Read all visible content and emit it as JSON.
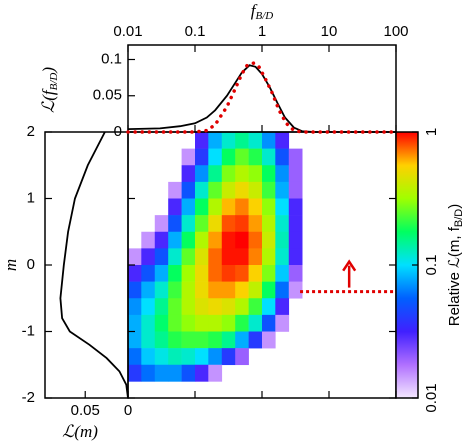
{
  "chart_data": [
    {
      "type": "heatmap",
      "ylabel": "m",
      "xscale": "log",
      "xlim": [
        0.01,
        100
      ],
      "ylim": [
        -2,
        2
      ],
      "yticks": [
        -2,
        -1,
        0,
        1,
        2
      ],
      "x_edges": [
        0.01,
        0.0158,
        0.0251,
        0.0398,
        0.0631,
        0.1,
        0.158,
        0.251,
        0.398,
        0.631,
        1,
        1.58,
        2.51,
        3.98
      ],
      "y_edges": [
        2,
        1.75,
        1.5,
        1.25,
        1,
        0.75,
        0.5,
        0.25,
        0,
        -0.25,
        -0.5,
        -0.75,
        -1,
        -1.25,
        -1.5,
        -1.75
      ],
      "z": [
        [
          null,
          null,
          null,
          null,
          null,
          0.03,
          0.08,
          0.12,
          0.15,
          0.12,
          0.07,
          0.03,
          null
        ],
        [
          null,
          null,
          null,
          null,
          0.015,
          0.04,
          0.1,
          0.18,
          0.25,
          0.2,
          0.12,
          0.05,
          0.02
        ],
        [
          null,
          null,
          null,
          null,
          0.03,
          0.07,
          0.15,
          0.28,
          0.35,
          0.3,
          0.18,
          0.07,
          0.02
        ],
        [
          null,
          null,
          null,
          0.015,
          0.05,
          0.12,
          0.25,
          0.4,
          0.5,
          0.4,
          0.22,
          0.08,
          0.02
        ],
        [
          null,
          null,
          null,
          0.03,
          0.08,
          0.18,
          0.35,
          0.6,
          0.7,
          0.55,
          0.3,
          0.1,
          0.03
        ],
        [
          null,
          null,
          0.015,
          0.05,
          0.12,
          0.25,
          0.5,
          0.8,
          0.85,
          0.65,
          0.35,
          0.12,
          0.03
        ],
        [
          null,
          0.015,
          0.03,
          0.08,
          0.18,
          0.35,
          0.65,
          0.95,
          1,
          0.75,
          0.4,
          0.13,
          0.03
        ],
        [
          0.015,
          0.03,
          0.05,
          0.12,
          0.25,
          0.45,
          0.75,
          0.95,
          0.95,
          0.7,
          0.35,
          0.12,
          0.03
        ],
        [
          0.03,
          0.05,
          0.08,
          0.18,
          0.32,
          0.5,
          0.75,
          0.85,
          0.8,
          0.55,
          0.28,
          0.09,
          0.02
        ],
        [
          0.05,
          0.08,
          0.12,
          0.22,
          0.35,
          0.5,
          0.65,
          0.65,
          0.55,
          0.38,
          0.18,
          0.06,
          0.015
        ],
        [
          0.07,
          0.1,
          0.15,
          0.25,
          0.35,
          0.45,
          0.5,
          0.45,
          0.35,
          0.22,
          0.1,
          0.03,
          null
        ],
        [
          0.08,
          0.12,
          0.17,
          0.25,
          0.3,
          0.35,
          0.35,
          0.3,
          0.2,
          0.12,
          0.05,
          0.015,
          null
        ],
        [
          0.08,
          0.12,
          0.15,
          0.2,
          0.22,
          0.22,
          0.2,
          0.15,
          0.08,
          0.04,
          0.015,
          null,
          null
        ],
        [
          0.06,
          0.09,
          0.11,
          0.13,
          0.12,
          0.1,
          0.07,
          0.04,
          0.02,
          null,
          null,
          null,
          null
        ],
        [
          0.04,
          0.06,
          0.07,
          0.07,
          0.05,
          0.03,
          0.015,
          null,
          null,
          null,
          null,
          null,
          null
        ]
      ],
      "colorbar": {
        "scale": "log",
        "lim": [
          0.01,
          1
        ],
        "ticks": [
          1,
          0.1,
          0.01
        ],
        "label": {
          "text": "Relative ℒ(m, f",
          "sub": "B/D",
          "after": ")"
        },
        "colormap": [
          "#f4e8ff",
          "#b070ff",
          "#4020ff",
          "#0060ff",
          "#00e0ff",
          "#00ff60",
          "#a0ff00",
          "#ffd000",
          "#ff0000"
        ]
      },
      "annotation": {
        "color": "#e00000",
        "limit_m": -0.4,
        "f_range": [
          3.7,
          100
        ],
        "arrow_f": 20,
        "arrow_to_m": 0.05
      }
    },
    {
      "type": "line",
      "xlabel": {
        "text": "f",
        "sub": "B/D"
      },
      "ylabel": {
        "text": "ℒ(f",
        "sub": "B/D",
        "after": ")"
      },
      "xscale": "log",
      "xlim": [
        0.01,
        100
      ],
      "xticks": [
        0.01,
        0.1,
        1,
        10,
        100
      ],
      "ylim": [
        0,
        0.12
      ],
      "yticks": [
        0,
        0.05,
        0.1
      ],
      "series": [
        {
          "color": "#000000",
          "style": "solid",
          "x": [
            0.01,
            0.03,
            0.06,
            0.1,
            0.15,
            0.2,
            0.3,
            0.4,
            0.5,
            0.65,
            0.8,
            1,
            1.3,
            1.7,
            2.2,
            3,
            4,
            6,
            10,
            100
          ],
          "values": [
            0.004,
            0.005,
            0.008,
            0.012,
            0.02,
            0.03,
            0.05,
            0.068,
            0.082,
            0.092,
            0.09,
            0.08,
            0.062,
            0.04,
            0.02,
            0.006,
            0.001,
            0,
            0,
            0
          ]
        },
        {
          "color": "#e00000",
          "style": "dotted",
          "x": [
            0.01,
            0.1,
            0.15,
            0.2,
            0.3,
            0.4,
            0.5,
            0.6,
            0.75,
            0.9,
            1.1,
            1.4,
            1.8,
            2.3,
            3,
            4,
            100
          ],
          "values": [
            0,
            0,
            0.002,
            0.01,
            0.035,
            0.06,
            0.08,
            0.092,
            0.095,
            0.09,
            0.075,
            0.055,
            0.03,
            0.012,
            0.002,
            0,
            0
          ]
        }
      ]
    },
    {
      "type": "line_horizontal",
      "xlabel": {
        "text": "ℒ(m)"
      },
      "xlim": [
        0.097,
        0
      ],
      "xticks": [
        0.05,
        0
      ],
      "series": [
        {
          "color": "#000000",
          "style": "solid",
          "y": [
            2,
            1.5,
            1,
            0.5,
            0,
            -0.5,
            -0.8,
            -1,
            -1.2,
            -1.4,
            -1.6,
            -1.8,
            -2
          ],
          "values": [
            0.027,
            0.047,
            0.062,
            0.07,
            0.075,
            0.079,
            0.077,
            0.068,
            0.045,
            0.025,
            0.01,
            0.002,
            0
          ]
        }
      ]
    }
  ]
}
